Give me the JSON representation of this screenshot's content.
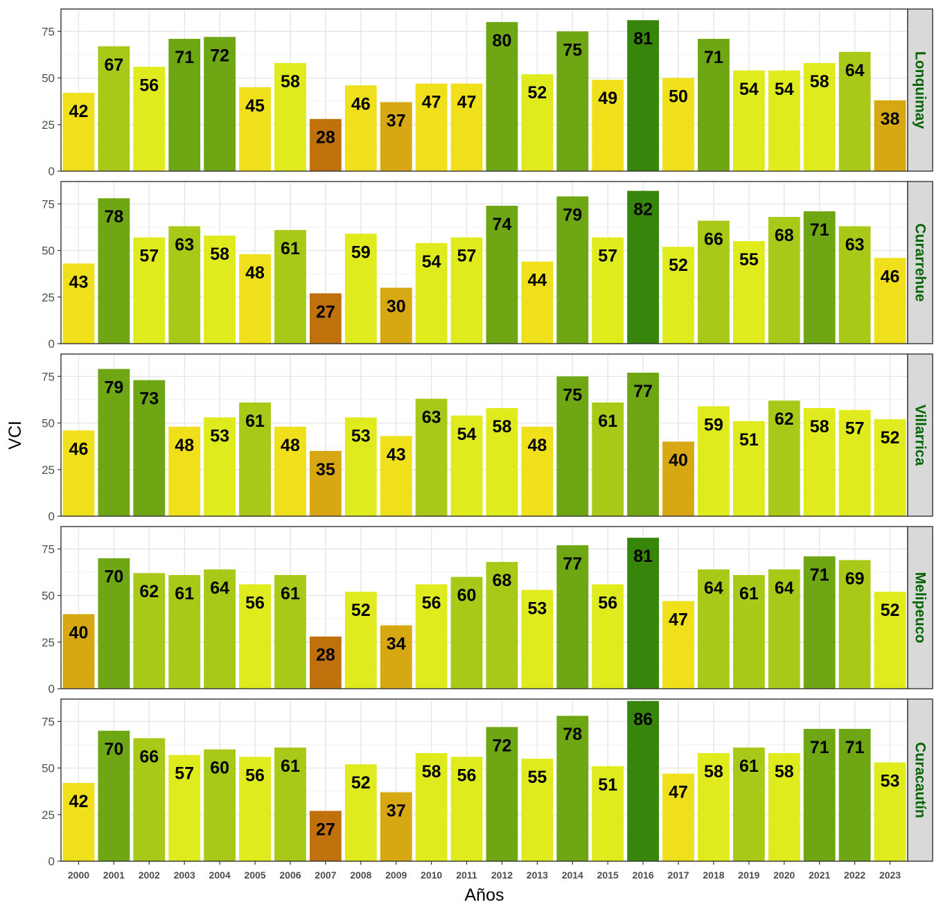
{
  "chart_data": {
    "type": "bar",
    "ylabel": "VCI",
    "xlabel": "Años",
    "ylim": [
      0,
      87
    ],
    "yticks": [
      0,
      25,
      50,
      75
    ],
    "categories": [
      "2000",
      "2001",
      "2002",
      "2003",
      "2004",
      "2005",
      "2006",
      "2007",
      "2008",
      "2009",
      "2010",
      "2011",
      "2012",
      "2013",
      "2014",
      "2015",
      "2016",
      "2017",
      "2018",
      "2019",
      "2020",
      "2021",
      "2022",
      "2023"
    ],
    "grid": true,
    "facets": [
      {
        "name": "Lonquimay",
        "values": [
          42,
          67,
          56,
          71,
          72,
          45,
          58,
          28,
          46,
          37,
          47,
          47,
          80,
          52,
          75,
          49,
          81,
          50,
          71,
          54,
          54,
          58,
          64,
          38
        ]
      },
      {
        "name": "Curarrehue",
        "values": [
          43,
          78,
          57,
          63,
          58,
          48,
          61,
          27,
          59,
          30,
          54,
          57,
          74,
          44,
          79,
          57,
          82,
          52,
          66,
          55,
          68,
          71,
          63,
          46
        ]
      },
      {
        "name": "Villarrica",
        "values": [
          46,
          79,
          73,
          48,
          53,
          61,
          48,
          35,
          53,
          43,
          63,
          54,
          58,
          48,
          75,
          61,
          77,
          40,
          59,
          51,
          62,
          58,
          57,
          52
        ]
      },
      {
        "name": "Melipeuco",
        "values": [
          40,
          70,
          62,
          61,
          64,
          56,
          61,
          28,
          52,
          34,
          56,
          60,
          68,
          53,
          77,
          56,
          81,
          47,
          64,
          61,
          64,
          71,
          69,
          52
        ]
      },
      {
        "name": "Curacautín",
        "values": [
          42,
          70,
          66,
          57,
          60,
          56,
          61,
          27,
          52,
          37,
          58,
          56,
          72,
          55,
          78,
          51,
          86,
          47,
          58,
          61,
          58,
          71,
          71,
          53
        ]
      }
    ],
    "color_scale": [
      {
        "max": 29.5,
        "color": "#c0710c"
      },
      {
        "max": 40.5,
        "color": "#d8a812"
      },
      {
        "max": 50.5,
        "color": "#f0e01c"
      },
      {
        "max": 59.5,
        "color": "#e0eb1e"
      },
      {
        "max": 69.5,
        "color": "#a8c918"
      },
      {
        "max": 80.5,
        "color": "#6ea614"
      },
      {
        "max": 100,
        "color": "#37860b"
      }
    ],
    "strip_text_color": "#006400"
  }
}
